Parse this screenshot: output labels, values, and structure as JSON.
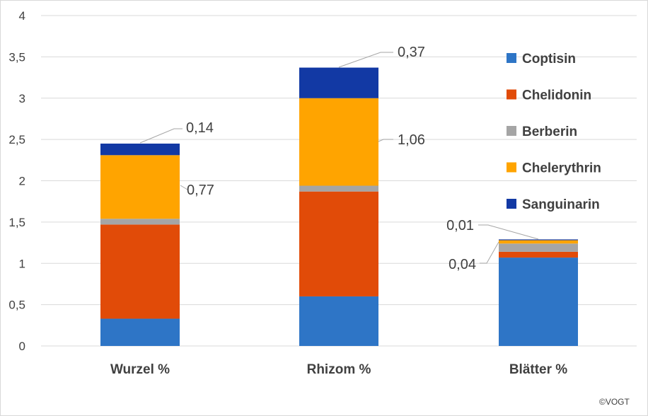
{
  "chart_data": {
    "type": "bar",
    "stacked": true,
    "categories": [
      "Wurzel %",
      "Rhizom %",
      "Blätter %"
    ],
    "ylim": [
      0,
      4
    ],
    "yticks": [
      "0",
      "0,5",
      "1",
      "1,5",
      "2",
      "2,5",
      "3",
      "3,5",
      "4"
    ],
    "grid": true,
    "legend_position": "right",
    "series": [
      {
        "name": "Coptisin",
        "color": "#2E75C6",
        "values": [
          0.33,
          0.6,
          1.07
        ]
      },
      {
        "name": "Chelidonin",
        "color": "#E14B08",
        "values": [
          1.14,
          1.27,
          0.07
        ]
      },
      {
        "name": "Berberin",
        "color": "#A5A5A5",
        "values": [
          0.07,
          0.07,
          0.1
        ]
      },
      {
        "name": "Chelerythrin",
        "color": "#FFA400",
        "values": [
          0.77,
          1.06,
          0.04
        ]
      },
      {
        "name": "Sanguinarin",
        "color": "#1239A4",
        "values": [
          0.14,
          0.37,
          0.01
        ]
      }
    ],
    "data_labels": [
      {
        "category": 0,
        "series": 3,
        "text": "0,77"
      },
      {
        "category": 0,
        "series": 4,
        "text": "0,14"
      },
      {
        "category": 1,
        "series": 3,
        "text": "1,06"
      },
      {
        "category": 1,
        "series": 4,
        "text": "0,37"
      },
      {
        "category": 2,
        "series": 3,
        "text": "0,04"
      },
      {
        "category": 2,
        "series": 4,
        "text": "0,01"
      }
    ]
  },
  "credit": "©VOGT"
}
